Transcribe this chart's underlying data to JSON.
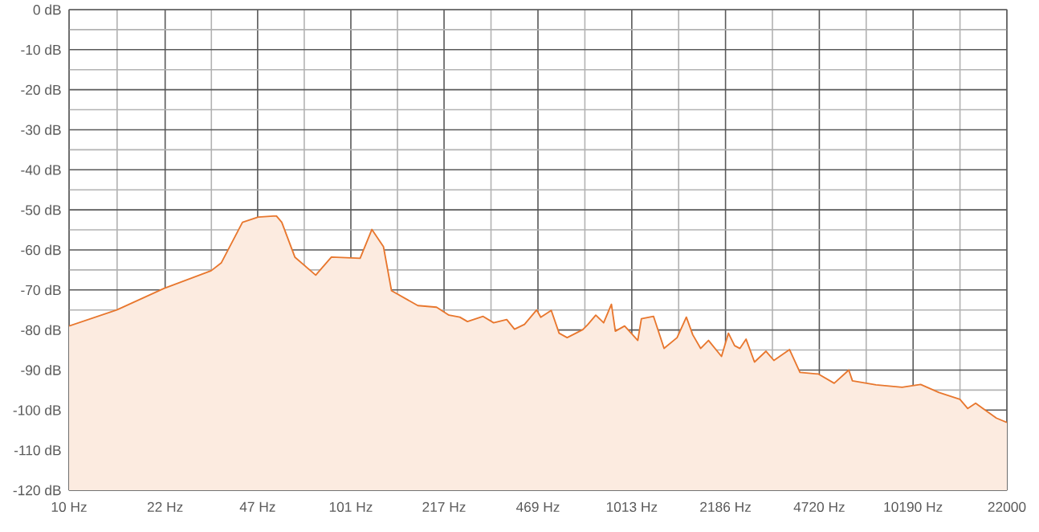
{
  "chart_data": {
    "type": "area",
    "log": "x",
    "grid": true,
    "marker": "none",
    "line_style": "solid",
    "xlim": [
      10,
      22000
    ],
    "ylim": [
      -120,
      0
    ],
    "xticks": [
      {
        "value": 10,
        "label": "10 Hz"
      },
      {
        "value": 22,
        "label": "22 Hz"
      },
      {
        "value": 47,
        "label": "47 Hz"
      },
      {
        "value": 101,
        "label": "101 Hz"
      },
      {
        "value": 217,
        "label": "217 Hz"
      },
      {
        "value": 469,
        "label": "469 Hz"
      },
      {
        "value": 1013,
        "label": "1013 Hz"
      },
      {
        "value": 2186,
        "label": "2186 Hz"
      },
      {
        "value": 4720,
        "label": "4720 Hz"
      },
      {
        "value": 10190,
        "label": "10190 Hz"
      },
      {
        "value": 22000,
        "label": "22000"
      }
    ],
    "yticks": [
      {
        "value": 0,
        "label": "0 dB"
      },
      {
        "value": -10,
        "label": "-10 dB"
      },
      {
        "value": -20,
        "label": "-20 dB"
      },
      {
        "value": -30,
        "label": "-30 dB"
      },
      {
        "value": -40,
        "label": "-40 dB"
      },
      {
        "value": -50,
        "label": "-50 dB"
      },
      {
        "value": -60,
        "label": "-60 dB"
      },
      {
        "value": -70,
        "label": "-70 dB"
      },
      {
        "value": -80,
        "label": "-80 dB"
      },
      {
        "value": -90,
        "label": "-90 dB"
      },
      {
        "value": -100,
        "label": "-100 dB"
      },
      {
        "value": -110,
        "label": "-110 dB"
      },
      {
        "value": -120,
        "label": "-120 dB"
      }
    ],
    "series": [
      {
        "color": "#e8772e",
        "x": [
          10,
          14.8,
          21.8,
          32.1,
          34.9,
          41.5,
          47.2,
          54.8,
          57.3,
          63.8,
          75.7,
          86.1,
          109,
          120,
          132,
          141,
          175,
          204,
          226,
          247,
          263,
          299,
          326,
          363,
          387,
          420,
          464,
          480,
          523,
          558,
          596,
          678,
          707,
          754,
          804,
          857,
          885,
          955,
          1064,
          1096,
          1211,
          1320,
          1469,
          1585,
          1671,
          1782,
          1901,
          2115,
          2239,
          2355,
          2460,
          2588,
          2773,
          3048,
          3251,
          3698,
          4027,
          4688,
          5333,
          6012,
          6194,
          7516,
          9311,
          10839,
          12593,
          14962,
          15959,
          17023,
          20184,
          22000
        ],
        "values": [
          -79.0,
          -75.0,
          -69.6,
          -65.2,
          -63.2,
          -53.1,
          -51.8,
          -51.5,
          -53.1,
          -61.8,
          -66.3,
          -61.8,
          -62.1,
          -54.9,
          -59.2,
          -70.2,
          -73.9,
          -74.3,
          -76.3,
          -76.8,
          -77.9,
          -76.6,
          -78.2,
          -77.4,
          -79.8,
          -78.6,
          -75.0,
          -76.8,
          -75.1,
          -80.8,
          -81.9,
          -79.9,
          -78.6,
          -76.3,
          -78.2,
          -73.6,
          -80.3,
          -79.0,
          -82.6,
          -77.2,
          -76.6,
          -84.6,
          -81.9,
          -76.8,
          -81.2,
          -84.6,
          -82.6,
          -86.6,
          -80.8,
          -83.9,
          -84.6,
          -82.3,
          -88.0,
          -85.3,
          -87.6,
          -84.9,
          -90.6,
          -91.0,
          -93.3,
          -90.0,
          -92.7,
          -93.7,
          -94.3,
          -93.6,
          -95.6,
          -97.3,
          -99.6,
          -98.3,
          -102.0,
          -103.1
        ]
      }
    ]
  }
}
